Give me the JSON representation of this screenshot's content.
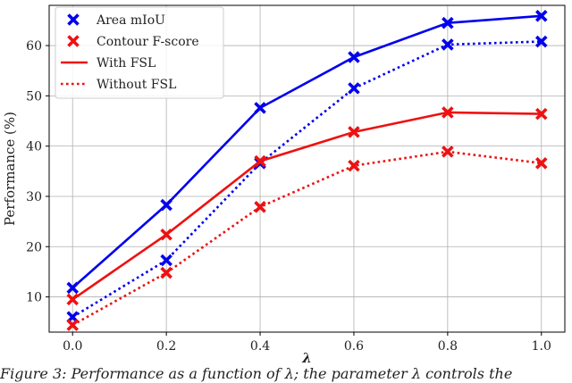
{
  "chart_data": {
    "type": "line",
    "title": "",
    "xlabel": "λ",
    "ylabel": "Performance (%)",
    "x": [
      0.0,
      0.2,
      0.4,
      0.6,
      0.8,
      1.0
    ],
    "x_tick_labels": [
      "0.0",
      "0.2",
      "0.4",
      "0.6",
      "0.8",
      "1.0"
    ],
    "y_ticks": [
      10,
      20,
      30,
      40,
      50,
      60
    ],
    "y_tick_labels": [
      "10",
      "20",
      "30",
      "40",
      "50",
      "60"
    ],
    "xlim": [
      -0.05,
      1.05
    ],
    "ylim": [
      3,
      68
    ],
    "grid": true,
    "legend_position": "top-left",
    "legend": [
      {
        "label": "Area mIoU",
        "kind": "marker",
        "color": "#0000ee"
      },
      {
        "label": "Contour F-score",
        "kind": "marker",
        "color": "#ee1111"
      },
      {
        "label": "With FSL",
        "kind": "solid-line",
        "color": "#ee1111"
      },
      {
        "label": "Without FSL",
        "kind": "dotted-line",
        "color": "#ee1111"
      }
    ],
    "series": [
      {
        "metric": "Area mIoU",
        "condition": "With FSL",
        "color": "#0000ee",
        "style": "solid",
        "values": [
          11.8,
          28.3,
          47.6,
          57.7,
          64.5,
          65.9
        ]
      },
      {
        "metric": "Area mIoU",
        "condition": "Without FSL",
        "color": "#0000ee",
        "style": "dotted",
        "values": [
          6.0,
          17.3,
          36.6,
          51.5,
          60.2,
          60.8
        ]
      },
      {
        "metric": "Contour F-score",
        "condition": "With FSL",
        "color": "#ee1111",
        "style": "solid",
        "values": [
          9.5,
          22.4,
          37.0,
          42.8,
          46.7,
          46.4
        ]
      },
      {
        "metric": "Contour F-score",
        "condition": "Without FSL",
        "color": "#ee1111",
        "style": "dotted",
        "values": [
          4.4,
          14.8,
          27.9,
          36.1,
          38.9,
          36.6
        ]
      }
    ]
  },
  "caption": {
    "text": "Figure 3: Performance as a function of λ; the parameter λ controls the"
  }
}
